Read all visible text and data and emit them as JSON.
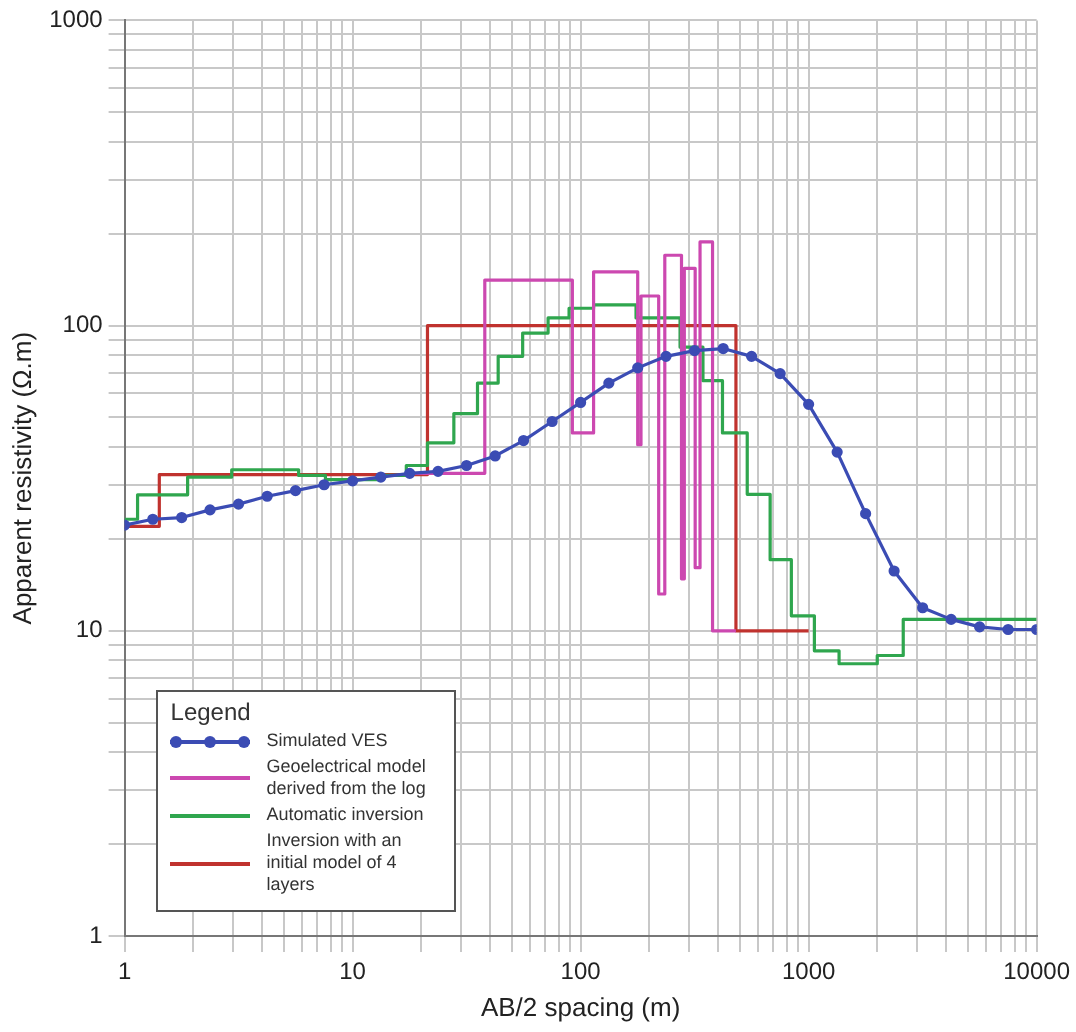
{
  "chart_data": {
    "type": "line",
    "xlabel": "AB/2 spacing (m)",
    "ylabel": "Apparent resistivity (Ω.m)",
    "legend_title": "Legend",
    "legend": "bottom left",
    "grid": true,
    "log": "xy",
    "xlim": [
      1,
      10000
    ],
    "ylim": [
      1,
      1000
    ],
    "xticks": [
      1,
      {
        "value": 2,
        "label": null
      },
      {
        "value": 3,
        "label": null
      },
      {
        "value": 4,
        "label": null
      },
      {
        "value": 5,
        "label": null
      },
      {
        "value": 6,
        "label": null
      },
      {
        "value": 7,
        "label": null
      },
      {
        "value": 8,
        "label": null
      },
      {
        "value": 9,
        "label": null
      },
      10,
      {
        "value": 20,
        "label": null
      },
      {
        "value": 30,
        "label": null
      },
      {
        "value": 40,
        "label": null
      },
      {
        "value": 50,
        "label": null
      },
      {
        "value": 60,
        "label": null
      },
      {
        "value": 70,
        "label": null
      },
      {
        "value": 80,
        "label": null
      },
      {
        "value": 90,
        "label": null
      },
      100,
      {
        "value": 200,
        "label": null
      },
      {
        "value": 300,
        "label": null
      },
      {
        "value": 400,
        "label": null
      },
      {
        "value": 500,
        "label": null
      },
      {
        "value": 600,
        "label": null
      },
      {
        "value": 700,
        "label": null
      },
      {
        "value": 800,
        "label": null
      },
      {
        "value": 900,
        "label": null
      },
      1000,
      {
        "value": 2000,
        "label": null
      },
      {
        "value": 3000,
        "label": null
      },
      {
        "value": 4000,
        "label": null
      },
      {
        "value": 5000,
        "label": null
      },
      {
        "value": 6000,
        "label": null
      },
      {
        "value": 7000,
        "label": null
      },
      {
        "value": 8000,
        "label": null
      },
      {
        "value": 9000,
        "label": null
      },
      10000
    ],
    "yticks": [
      1,
      {
        "value": 2,
        "label": null
      },
      {
        "value": 3,
        "label": null
      },
      {
        "value": 4,
        "label": null
      },
      {
        "value": 5,
        "label": null
      },
      {
        "value": 6,
        "label": null
      },
      {
        "value": 7,
        "label": null
      },
      {
        "value": 8,
        "label": null
      },
      {
        "value": 9,
        "label": null
      },
      10,
      {
        "value": 20,
        "label": null
      },
      {
        "value": 30,
        "label": null
      },
      {
        "value": 40,
        "label": null
      },
      {
        "value": 50,
        "label": null
      },
      {
        "value": 60,
        "label": null
      },
      {
        "value": 70,
        "label": null
      },
      {
        "value": 80,
        "label": null
      },
      {
        "value": 90,
        "label": null
      },
      100,
      {
        "value": 200,
        "label": null
      },
      {
        "value": 300,
        "label": null
      },
      {
        "value": 400,
        "label": null
      },
      {
        "value": 500,
        "label": null
      },
      {
        "value": 600,
        "label": null
      },
      {
        "value": 700,
        "label": null
      },
      {
        "value": 800,
        "label": null
      },
      {
        "value": 900,
        "label": null
      },
      1000
    ],
    "series": [
      {
        "name": "Simulated VES",
        "type": "line",
        "color": "#3b4cb4",
        "marker": "circle",
        "x": [
          1,
          1.33,
          1.78,
          2.37,
          3.16,
          4.22,
          5.62,
          7.5,
          10,
          13.3,
          17.8,
          23.7,
          31.6,
          42.2,
          56.2,
          75,
          100,
          133,
          178,
          237,
          316,
          422,
          562,
          750,
          1000,
          1334,
          1778,
          2371,
          3162,
          4217,
          5623,
          7499,
          10000
        ],
        "values": [
          22.2,
          23.2,
          23.5,
          24.9,
          26.0,
          27.6,
          28.8,
          30.1,
          31.0,
          31.9,
          32.8,
          33.3,
          34.8,
          37.4,
          42.0,
          48.5,
          56.0,
          64.8,
          72.7,
          79.3,
          82.8,
          84.1,
          79.3,
          69.6,
          55.2,
          38.5,
          24.2,
          15.7,
          11.9,
          10.9,
          10.3,
          10.1,
          10.1
        ]
      },
      {
        "name": "Geoelectrical model derived from the log",
        "type": "step",
        "color": "#cc48b0",
        "x": [
          17,
          38,
          92,
          114,
          178,
          184,
          220,
          234,
          277,
          285,
          318,
          334,
          379,
          480
        ],
        "values": [
          32.8,
          141,
          44.5,
          150,
          40.7,
          125,
          13.2,
          170,
          14.8,
          154,
          16.1,
          188,
          10,
          10
        ]
      },
      {
        "name": "Automatic inversion",
        "type": "step",
        "color": "#2fa64e",
        "x": [
          1,
          1.14,
          1.89,
          2.95,
          5.8,
          7.6,
          13.1,
          17.2,
          21.3,
          27.8,
          35.3,
          43.5,
          55.7,
          72,
          89,
          114,
          175,
          273,
          344,
          419,
          538,
          678,
          840,
          1060,
          1360,
          2000,
          2600,
          10000
        ],
        "values": [
          23.2,
          27.9,
          31.9,
          33.7,
          32.3,
          31.3,
          32.3,
          34.8,
          41.3,
          51.5,
          64.8,
          79.3,
          94.5,
          106,
          114,
          117,
          106,
          85,
          66,
          44.5,
          28,
          17.1,
          11.2,
          8.6,
          7.8,
          8.3,
          10.9,
          10.9
        ]
      },
      {
        "name": "Inversion with an initial model of 4 layers",
        "type": "step",
        "color": "#c0322e",
        "x": [
          1,
          1.42,
          21.3,
          480,
          1000
        ],
        "values": [
          22,
          32.5,
          100,
          10,
          10
        ]
      }
    ]
  }
}
